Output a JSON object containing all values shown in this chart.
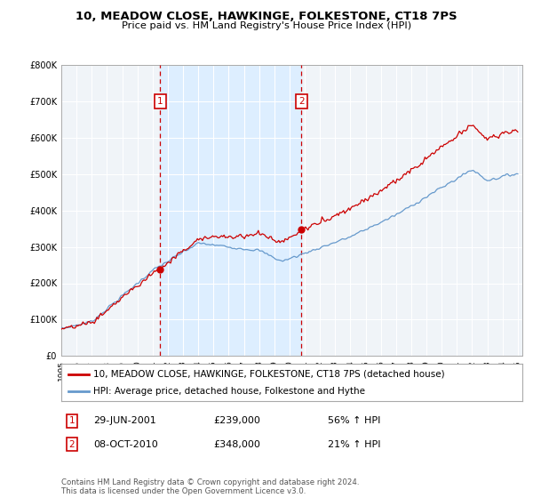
{
  "title": "10, MEADOW CLOSE, HAWKINGE, FOLKESTONE, CT18 7PS",
  "subtitle": "Price paid vs. HM Land Registry's House Price Index (HPI)",
  "legend_line1": "10, MEADOW CLOSE, HAWKINGE, FOLKESTONE, CT18 7PS (detached house)",
  "legend_line2": "HPI: Average price, detached house, Folkestone and Hythe",
  "transaction1_date": "29-JUN-2001",
  "transaction1_price": "£239,000",
  "transaction1_hpi": "56% ↑ HPI",
  "transaction2_date": "08-OCT-2010",
  "transaction2_price": "£348,000",
  "transaction2_hpi": "21% ↑ HPI",
  "footer": "Contains HM Land Registry data © Crown copyright and database right 2024.\nThis data is licensed under the Open Government Licence v3.0.",
  "hpi_color": "#6699cc",
  "price_color": "#cc0000",
  "vline_color": "#cc0000",
  "shade_color": "#ddeeff",
  "plot_bg_color": "#f0f4f8",
  "ylim": [
    0,
    800000
  ],
  "yticks": [
    0,
    100000,
    200000,
    300000,
    400000,
    500000,
    600000,
    700000,
    800000
  ],
  "start_year": 1995,
  "end_year": 2025,
  "t1": 2001.496,
  "t2": 2010.771,
  "t1_price": 239000,
  "t2_price": 348000
}
